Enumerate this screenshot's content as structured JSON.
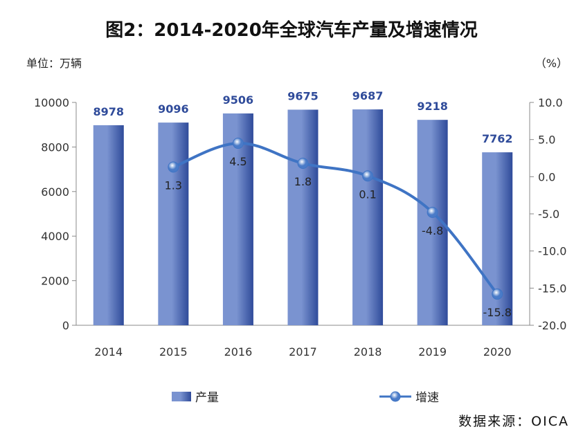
{
  "title": "图2：2014-2020年全球汽车产量及增速情况",
  "left_unit": "单位：万辆",
  "right_unit": "（%）",
  "source": "数据来源：OICA",
  "colors": {
    "bar_light": "#7A93D0",
    "bar_dark": "#2F4B9A",
    "line": "#3F74C4",
    "marker": "#4A7BC8",
    "axis": "#888888",
    "bar_label": "#2F4B9A"
  },
  "chart_data": {
    "type": "bar",
    "categories": [
      "2014",
      "2015",
      "2016",
      "2017",
      "2018",
      "2019",
      "2020"
    ],
    "series": [
      {
        "name": "产量",
        "type": "bar",
        "axis": "left",
        "values": [
          8978,
          9096,
          9506,
          9675,
          9687,
          9218,
          7762
        ],
        "labels": [
          "8978",
          "9096",
          "9506",
          "9675",
          "9687",
          "9218",
          "7762"
        ]
      },
      {
        "name": "增速",
        "type": "line",
        "axis": "right",
        "values": [
          null,
          1.3,
          4.5,
          1.8,
          0.1,
          -4.8,
          -15.8
        ],
        "labels": [
          "",
          "1.3",
          "4.5",
          "1.8",
          "0.1",
          "-4.8",
          "-15.8"
        ]
      }
    ],
    "y_left": {
      "lim": [
        0,
        10000
      ],
      "ticks": [
        "0",
        "2000",
        "4000",
        "6000",
        "8000",
        "10000"
      ],
      "tick_values": [
        0,
        2000,
        4000,
        6000,
        8000,
        10000
      ]
    },
    "y_right": {
      "lim": [
        -20,
        10
      ],
      "ticks": [
        "-20.0",
        "-15.0",
        "-10.0",
        "-5.0",
        "0.0",
        "5.0",
        "10.0"
      ],
      "tick_values": [
        -20,
        -15,
        -10,
        -5,
        0,
        5,
        10
      ]
    },
    "grid": false,
    "legend_position": "bottom"
  }
}
